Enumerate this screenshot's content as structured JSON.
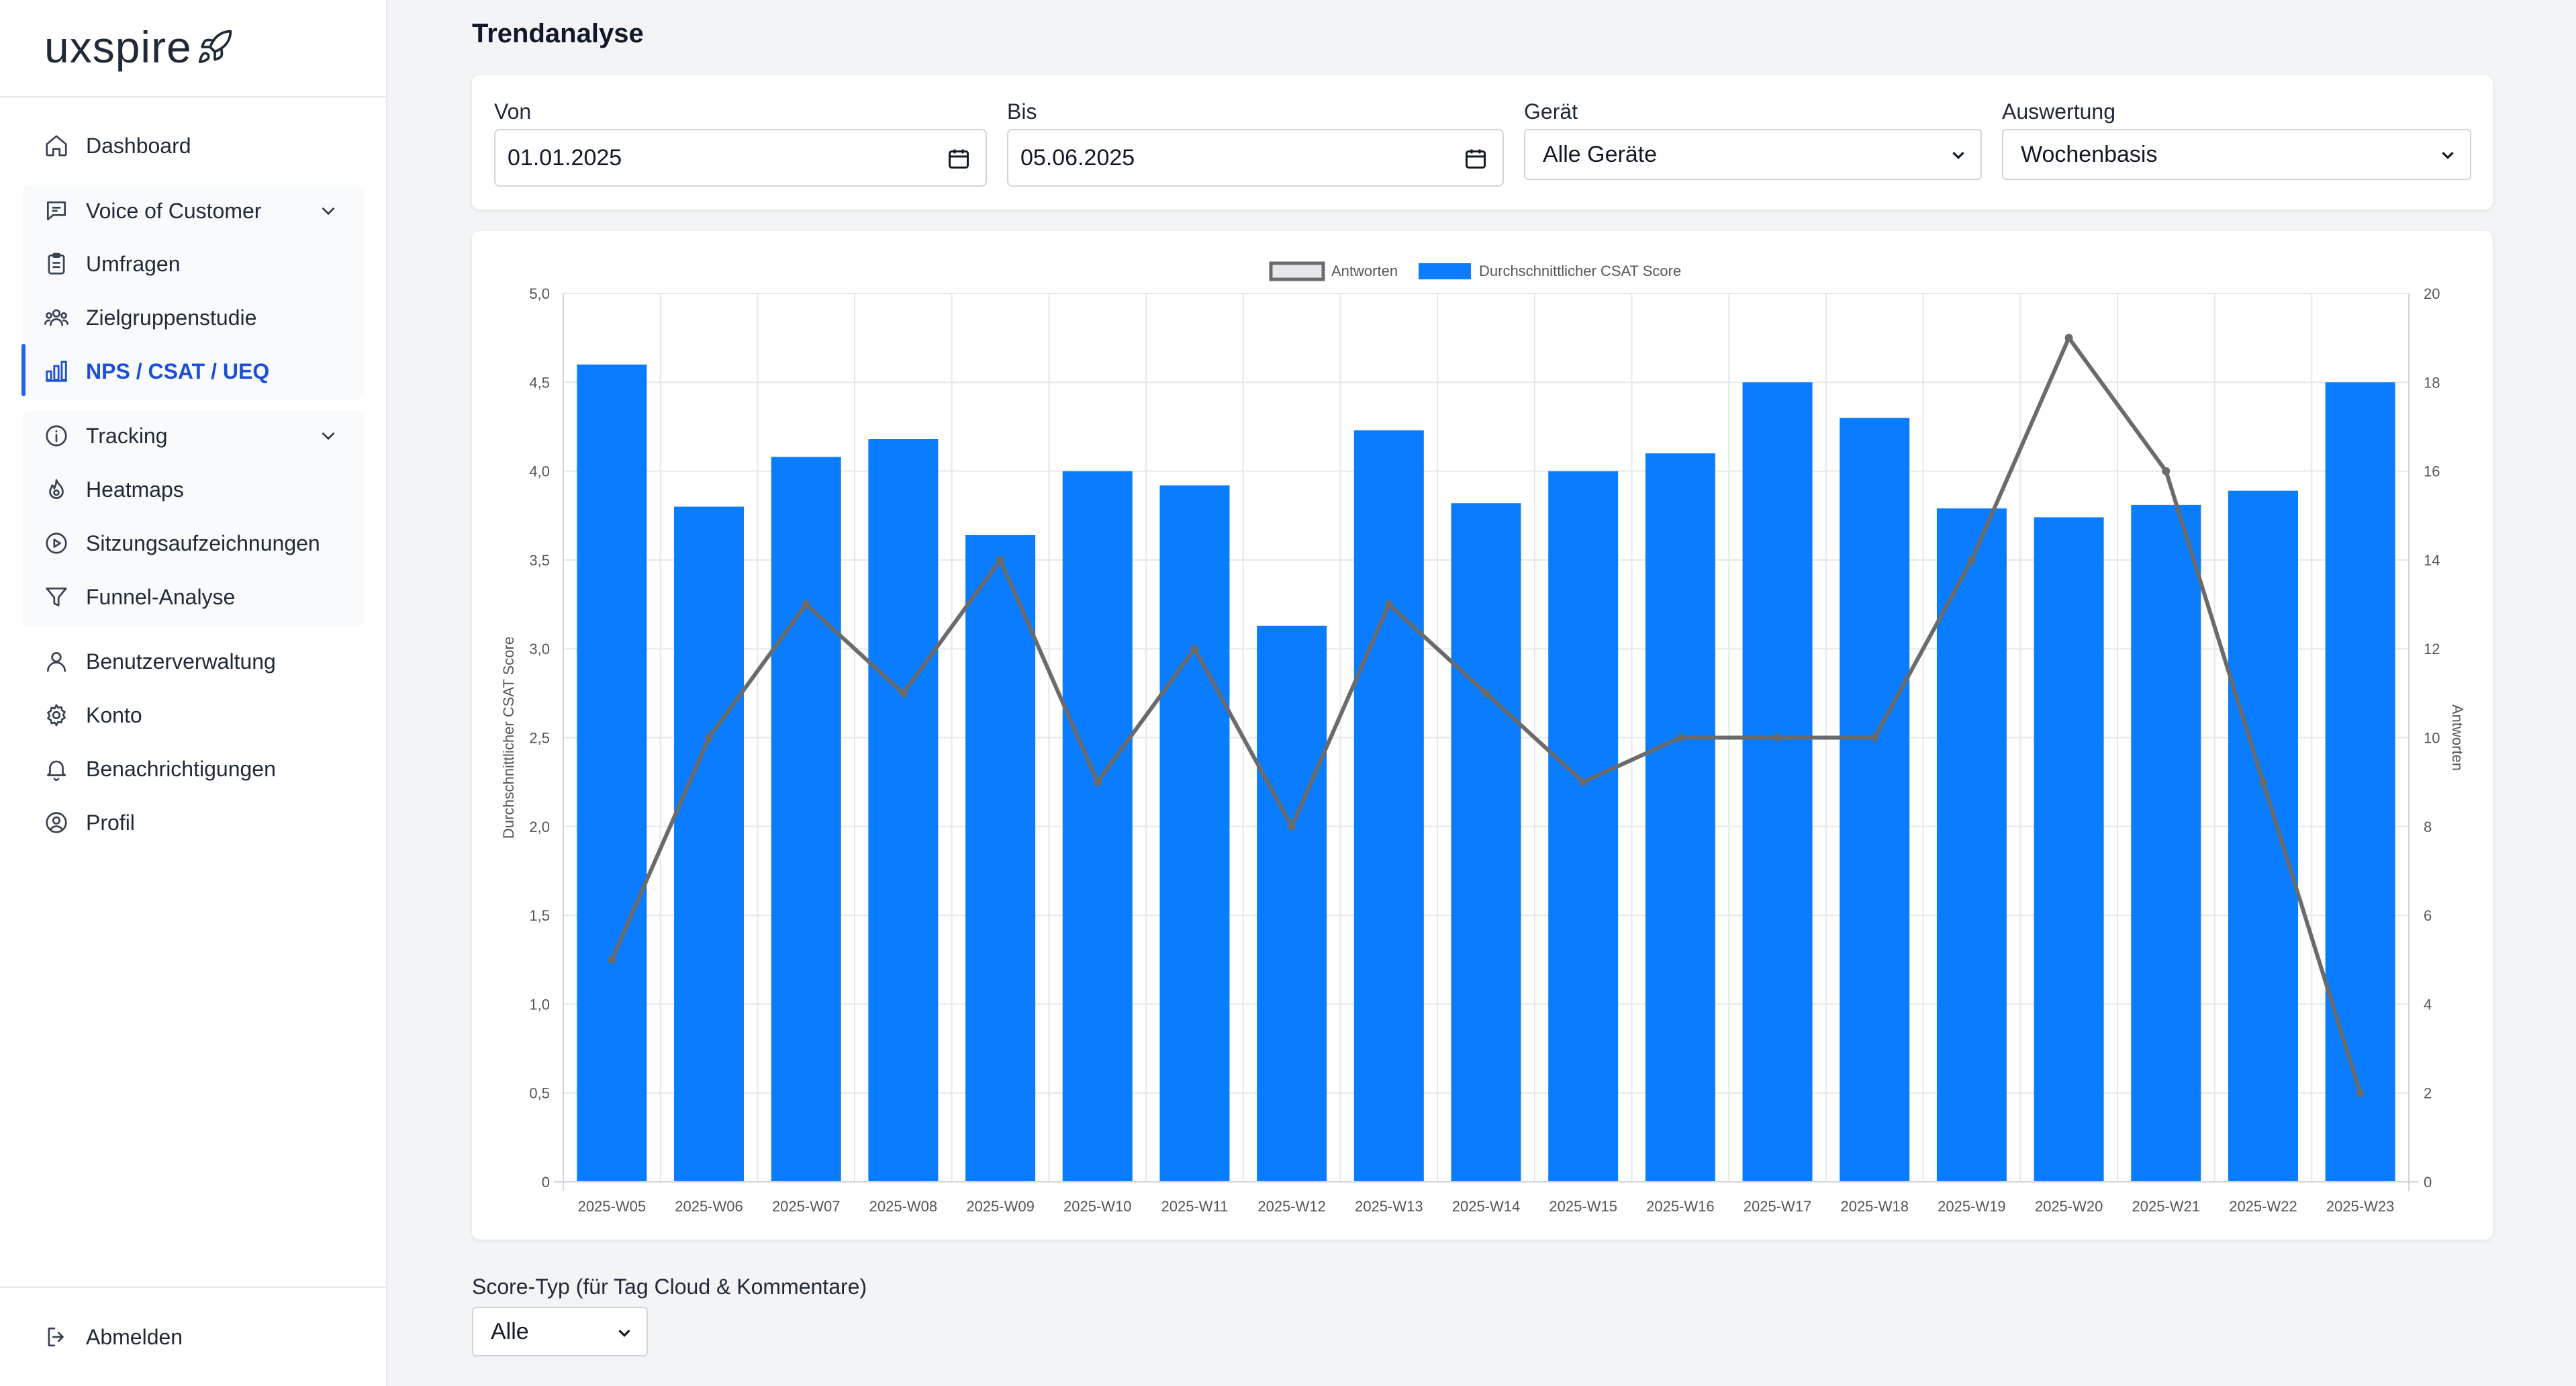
{
  "app": {
    "logo_text": "uxspire"
  },
  "sidebar": {
    "items": [
      {
        "label": "Dashboard",
        "icon": "home-icon"
      },
      {
        "label": "Voice of Customer",
        "icon": "message-square-icon"
      },
      {
        "label": "Umfragen",
        "icon": "clipboard-icon"
      },
      {
        "label": "Zielgruppenstudie",
        "icon": "users-icon"
      },
      {
        "label": "NPS / CSAT / UEQ",
        "icon": "bar-chart-icon"
      },
      {
        "label": "Tracking",
        "icon": "info-icon"
      },
      {
        "label": "Heatmaps",
        "icon": "flame-icon"
      },
      {
        "label": "Sitzungsaufzeichnungen",
        "icon": "play-circle-icon"
      },
      {
        "label": "Funnel-Analyse",
        "icon": "funnel-icon"
      },
      {
        "label": "Benutzerverwaltung",
        "icon": "user-icon"
      },
      {
        "label": "Konto",
        "icon": "gear-icon"
      },
      {
        "label": "Benachrichtigungen",
        "icon": "bell-icon"
      },
      {
        "label": "Profil",
        "icon": "user-circle-icon"
      }
    ],
    "logout_label": "Abmelden",
    "accent": "#2563eb"
  },
  "page": {
    "title": "Trendanalyse"
  },
  "filters": {
    "from_label": "Von",
    "from_value": "01.01.2025",
    "to_label": "Bis",
    "to_value": "05.06.2025",
    "device_label": "Gerät",
    "device_value": "Alle Geräte",
    "eval_label": "Auswertung",
    "eval_value": "Wochenbasis"
  },
  "score_type": {
    "label": "Score-Typ (für Tag Cloud & Kommentare)",
    "value": "Alle"
  },
  "chart_data": {
    "type": "bar",
    "categories": [
      "2025-W05",
      "2025-W06",
      "2025-W07",
      "2025-W08",
      "2025-W09",
      "2025-W10",
      "2025-W11",
      "2025-W12",
      "2025-W13",
      "2025-W14",
      "2025-W15",
      "2025-W16",
      "2025-W17",
      "2025-W18",
      "2025-W19",
      "2025-W20",
      "2025-W21",
      "2025-W22",
      "2025-W23"
    ],
    "series": [
      {
        "name": "Durchschnittlicher CSAT Score",
        "type": "bar",
        "axis": "left",
        "color": "#0a7cff",
        "values": [
          4.6,
          3.8,
          4.08,
          4.18,
          3.64,
          4.0,
          3.92,
          3.13,
          4.23,
          3.82,
          4.0,
          4.1,
          4.5,
          4.3,
          3.79,
          3.74,
          3.81,
          3.89,
          4.5
        ]
      },
      {
        "name": "Antworten",
        "type": "line",
        "axis": "right",
        "color": "#6b6b6b",
        "values": [
          5,
          10,
          13,
          11,
          14,
          9,
          12,
          8,
          13,
          11,
          9,
          10,
          10,
          10,
          14,
          19,
          16,
          9,
          2
        ]
      }
    ],
    "ylabel": "Durchschnittlicher CSAT Score",
    "y2label": "Antworten",
    "ylim": [
      0,
      5
    ],
    "y2lim": [
      0,
      20
    ],
    "yticks": [
      "0",
      "0,5",
      "1,0",
      "1,5",
      "2,0",
      "2,5",
      "3,0",
      "3,5",
      "4,0",
      "4,5",
      "5,0"
    ],
    "y2ticks": [
      "0",
      "2",
      "4",
      "6",
      "8",
      "10",
      "12",
      "14",
      "16",
      "18",
      "20"
    ],
    "grid": true,
    "legend": "top"
  }
}
